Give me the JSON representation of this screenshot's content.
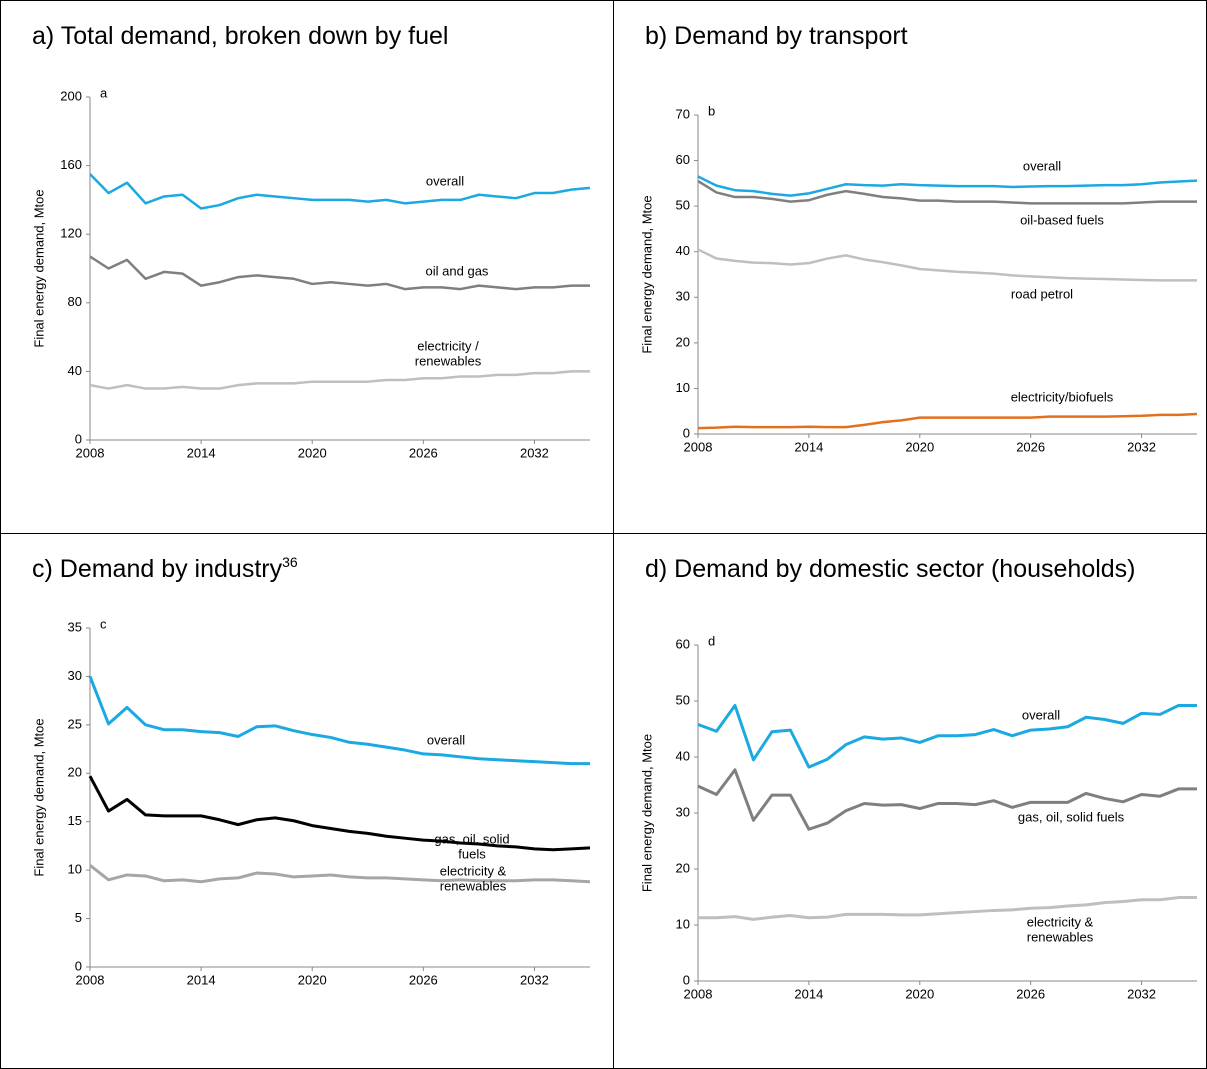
{
  "chart_data": [
    {
      "type": "line",
      "title": "a) Total demand, broken down by fuel",
      "panel_label": "a",
      "y_label": "Final energy demand, Mtoe",
      "x": [
        2008,
        2009,
        2010,
        2011,
        2012,
        2013,
        2014,
        2015,
        2016,
        2017,
        2018,
        2019,
        2020,
        2021,
        2022,
        2023,
        2024,
        2025,
        2026,
        2027,
        2028,
        2029,
        2030,
        2031,
        2032,
        2033,
        2034,
        2035
      ],
      "xlim": [
        2008,
        2035
      ],
      "xticks": [
        2008,
        2014,
        2020,
        2026,
        2032
      ],
      "ylim": [
        0,
        200
      ],
      "yticks": [
        0,
        40,
        80,
        120,
        160,
        200
      ],
      "series": [
        {
          "name": "overall",
          "color": "#1ba9e1",
          "values": [
            155,
            144,
            150,
            138,
            142,
            143,
            135,
            137,
            141,
            143,
            142,
            141,
            140,
            140,
            140,
            139,
            140,
            138,
            139,
            140,
            140,
            143,
            142,
            141,
            144,
            144,
            146,
            147
          ]
        },
        {
          "name": "oil and gas",
          "color": "#7f7f7f",
          "values": [
            107,
            100,
            105,
            94,
            98,
            97,
            90,
            92,
            95,
            96,
            95,
            94,
            91,
            92,
            91,
            90,
            91,
            88,
            89,
            89,
            88,
            90,
            89,
            88,
            89,
            89,
            90,
            90
          ]
        },
        {
          "name": "electricity /\nrenewables",
          "color": "#bfbfbf",
          "values": [
            32,
            30,
            32,
            30,
            30,
            31,
            30,
            30,
            32,
            33,
            33,
            33,
            34,
            34,
            34,
            34,
            35,
            35,
            36,
            36,
            37,
            37,
            38,
            38,
            39,
            39,
            40,
            40
          ]
        }
      ]
    },
    {
      "type": "line",
      "title": "b) Demand by transport",
      "panel_label": "b",
      "y_label": "Final energy demand,  Mtoe",
      "x": [
        2008,
        2009,
        2010,
        2011,
        2012,
        2013,
        2014,
        2015,
        2016,
        2017,
        2018,
        2019,
        2020,
        2021,
        2022,
        2023,
        2024,
        2025,
        2026,
        2027,
        2028,
        2029,
        2030,
        2031,
        2032,
        2033,
        2034,
        2035
      ],
      "xlim": [
        2008,
        2035
      ],
      "xticks": [
        2008,
        2014,
        2020,
        2026,
        2032
      ],
      "ylim": [
        0,
        70
      ],
      "yticks": [
        0,
        10,
        20,
        30,
        40,
        50,
        60,
        70
      ],
      "series": [
        {
          "name": "overall",
          "color": "#1ba9e1",
          "values": [
            56.5,
            54.5,
            53.5,
            53.3,
            52.7,
            52.3,
            52.8,
            53.8,
            54.8,
            54.6,
            54.5,
            54.8,
            54.6,
            54.5,
            54.4,
            54.4,
            54.4,
            54.2,
            54.3,
            54.4,
            54.4,
            54.5,
            54.6,
            54.6,
            54.8,
            55.2,
            55.4,
            55.6
          ]
        },
        {
          "name": "oil-based fuels",
          "color": "#7f7f7f",
          "values": [
            55.5,
            53,
            52,
            52,
            51.6,
            51,
            51.3,
            52.5,
            53.3,
            52.7,
            52,
            51.7,
            51.2,
            51.2,
            51,
            51,
            51,
            50.8,
            50.6,
            50.6,
            50.6,
            50.6,
            50.6,
            50.6,
            50.8,
            51,
            51,
            51
          ]
        },
        {
          "name": "road petrol",
          "color": "#bfbfbf",
          "values": [
            40.5,
            38.5,
            38,
            37.6,
            37.5,
            37.2,
            37.5,
            38.5,
            39.2,
            38.3,
            37.7,
            37,
            36.2,
            35.9,
            35.6,
            35.4,
            35.2,
            34.8,
            34.6,
            34.4,
            34.2,
            34.1,
            34,
            33.9,
            33.8,
            33.7,
            33.7,
            33.7
          ]
        },
        {
          "name": "electricity/biofuels",
          "color": "#e2711d",
          "values": [
            1.3,
            1.4,
            1.6,
            1.5,
            1.5,
            1.5,
            1.6,
            1.5,
            1.5,
            2,
            2.6,
            3,
            3.6,
            3.6,
            3.6,
            3.6,
            3.6,
            3.6,
            3.6,
            3.8,
            3.8,
            3.8,
            3.8,
            3.9,
            4,
            4.2,
            4.2,
            4.4
          ]
        }
      ]
    },
    {
      "type": "line",
      "title": "c) Demand by industry",
      "title_note": "36",
      "panel_label": "c",
      "y_label": "Final energy demand, Mtoe",
      "x": [
        2008,
        2009,
        2010,
        2011,
        2012,
        2013,
        2014,
        2015,
        2016,
        2017,
        2018,
        2019,
        2020,
        2021,
        2022,
        2023,
        2024,
        2025,
        2026,
        2027,
        2028,
        2029,
        2030,
        2031,
        2032,
        2033,
        2034,
        2035
      ],
      "xlim": [
        2008,
        2035
      ],
      "xticks": [
        2008,
        2014,
        2020,
        2026,
        2032
      ],
      "ylim": [
        0,
        35
      ],
      "yticks": [
        0,
        5,
        10,
        15,
        20,
        25,
        30,
        35
      ],
      "series": [
        {
          "name": "overall",
          "color": "#1ba9e1",
          "values": [
            30,
            25.1,
            26.8,
            25,
            24.5,
            24.5,
            24.3,
            24.2,
            23.8,
            24.8,
            24.9,
            24.4,
            24,
            23.7,
            23.2,
            23,
            22.7,
            22.4,
            22,
            21.9,
            21.7,
            21.5,
            21.4,
            21.3,
            21.2,
            21.1,
            21,
            21
          ]
        },
        {
          "name": "gas, oil, solid\nfuels",
          "color": "#000000",
          "values": [
            19.7,
            16.1,
            17.3,
            15.7,
            15.6,
            15.6,
            15.6,
            15.2,
            14.7,
            15.2,
            15.4,
            15.1,
            14.6,
            14.3,
            14,
            13.8,
            13.5,
            13.3,
            13.1,
            13,
            12.8,
            12.7,
            12.5,
            12.4,
            12.2,
            12.1,
            12.2,
            12.3
          ]
        },
        {
          "name": "electricity &\nrenewables",
          "color": "#a6a6a6",
          "values": [
            10.5,
            9,
            9.5,
            9.4,
            8.9,
            9,
            8.8,
            9.1,
            9.2,
            9.7,
            9.6,
            9.3,
            9.4,
            9.5,
            9.3,
            9.2,
            9.2,
            9.1,
            9,
            8.9,
            9,
            8.9,
            8.9,
            8.9,
            9,
            9,
            8.9,
            8.8
          ]
        }
      ]
    },
    {
      "type": "line",
      "title": "d) Demand by domestic sector (households)",
      "panel_label": "d",
      "y_label": "Final energy demand, Mtoe",
      "x": [
        2008,
        2009,
        2010,
        2011,
        2012,
        2013,
        2014,
        2015,
        2016,
        2017,
        2018,
        2019,
        2020,
        2021,
        2022,
        2023,
        2024,
        2025,
        2026,
        2027,
        2028,
        2029,
        2030,
        2031,
        2032,
        2033,
        2034,
        2035
      ],
      "xlim": [
        2008,
        2035
      ],
      "xticks": [
        2008,
        2014,
        2020,
        2026,
        2032
      ],
      "ylim": [
        0,
        60
      ],
      "yticks": [
        0,
        10,
        20,
        30,
        40,
        50,
        60
      ],
      "series": [
        {
          "name": "overall",
          "color": "#1ba9e1",
          "values": [
            45.8,
            44.6,
            49.2,
            39.5,
            44.5,
            44.8,
            38.2,
            39.6,
            42.2,
            43.6,
            43.2,
            43.4,
            42.6,
            43.8,
            43.8,
            44,
            44.9,
            43.8,
            44.8,
            45,
            45.4,
            47.1,
            46.7,
            46,
            47.8,
            47.6,
            49.2,
            49.2
          ]
        },
        {
          "name": "gas, oil, solid fuels",
          "color": "#7f7f7f",
          "values": [
            34.8,
            33.3,
            37.7,
            28.7,
            33.2,
            33.2,
            27.1,
            28.2,
            30.4,
            31.7,
            31.4,
            31.5,
            30.8,
            31.7,
            31.7,
            31.5,
            32.2,
            31,
            31.9,
            31.9,
            31.9,
            33.5,
            32.6,
            32,
            33.3,
            33,
            34.3,
            34.3
          ]
        },
        {
          "name": "electricity &\nrenewables",
          "color": "#bfbfbf",
          "values": [
            11.3,
            11.3,
            11.5,
            11,
            11.4,
            11.7,
            11.3,
            11.4,
            11.9,
            11.9,
            11.9,
            11.8,
            11.8,
            12,
            12.2,
            12.4,
            12.6,
            12.7,
            13,
            13.1,
            13.4,
            13.6,
            14,
            14.2,
            14.5,
            14.5,
            14.9,
            14.9
          ]
        }
      ]
    }
  ]
}
